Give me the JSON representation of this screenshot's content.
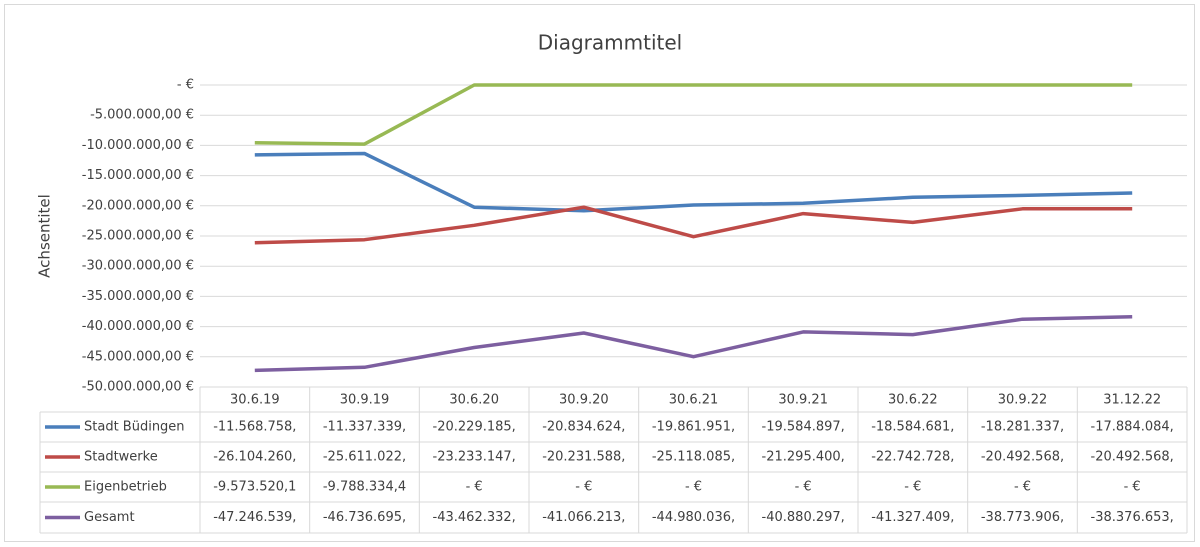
{
  "chart_data": {
    "type": "line",
    "title": "Diagrammtitel",
    "y_label": "Achsentitel",
    "categories": [
      "30.6.19",
      "30.9.19",
      "30.6.20",
      "30.9.20",
      "30.6.21",
      "30.9.21",
      "30.6.22",
      "30.9.22",
      "31.12.22"
    ],
    "series": [
      {
        "name": "Stadt Büdingen",
        "color": "#4a7ebb",
        "values": [
          -11568758,
          -11337339,
          -20229185,
          -20834624,
          -19861951,
          -19584897,
          -18584681,
          -18281337,
          -17884084
        ],
        "value_labels": [
          "-11.568.758,",
          "-11.337.339,",
          "-20.229.185,",
          "-20.834.624,",
          "-19.861.951,",
          "-19.584.897,",
          "-18.584.681,",
          "-18.281.337,",
          "-17.884.084,"
        ]
      },
      {
        "name": "Stadtwerke",
        "color": "#be4b48",
        "values": [
          -26104260,
          -25611022,
          -23233147,
          -20231588,
          -25118085,
          -21295400,
          -22742728,
          -20492568,
          -20492568
        ],
        "value_labels": [
          "-26.104.260,",
          "-25.611.022,",
          "-23.233.147,",
          "-20.231.588,",
          "-25.118.085,",
          "-21.295.400,",
          "-22.742.728,",
          "-20.492.568,",
          "-20.492.568,"
        ]
      },
      {
        "name": "Eigenbetrieb",
        "color": "#98b954",
        "values": [
          -9573520.1,
          -9788334.4,
          0,
          0,
          0,
          0,
          0,
          0,
          0
        ],
        "value_labels": [
          "-9.573.520,1",
          "-9.788.334,4",
          "-  €",
          "-  €",
          "-  €",
          "-  €",
          "-  €",
          "-  €",
          "-  €"
        ]
      },
      {
        "name": "Gesamt",
        "color": "#7d5fa0",
        "values": [
          -47246539,
          -46736695,
          -43462332,
          -41066213,
          -44980036,
          -40880297,
          -41327409,
          -38773906,
          -38376653
        ],
        "value_labels": [
          "-47.246.539,",
          "-46.736.695,",
          "-43.462.332,",
          "-41.066.213,",
          "-44.980.036,",
          "-40.880.297,",
          "-41.327.409,",
          "-38.773.906,",
          "-38.376.653,"
        ]
      }
    ],
    "ylim": [
      -50000000,
      0
    ],
    "yticks": [
      {
        "value": 0,
        "label": "-  €"
      },
      {
        "value": -5000000,
        "label": "-5.000.000,00 €"
      },
      {
        "value": -10000000,
        "label": "-10.000.000,00 €"
      },
      {
        "value": -15000000,
        "label": "-15.000.000,00 €"
      },
      {
        "value": -20000000,
        "label": "-20.000.000,00 €"
      },
      {
        "value": -25000000,
        "label": "-25.000.000,00 €"
      },
      {
        "value": -30000000,
        "label": "-30.000.000,00 €"
      },
      {
        "value": -35000000,
        "label": "-35.000.000,00 €"
      },
      {
        "value": -40000000,
        "label": "-40.000.000,00 €"
      },
      {
        "value": -45000000,
        "label": "-45.000.000,00 €"
      },
      {
        "value": -50000000,
        "label": "-50.000.000,00 €"
      }
    ],
    "grid": true
  }
}
